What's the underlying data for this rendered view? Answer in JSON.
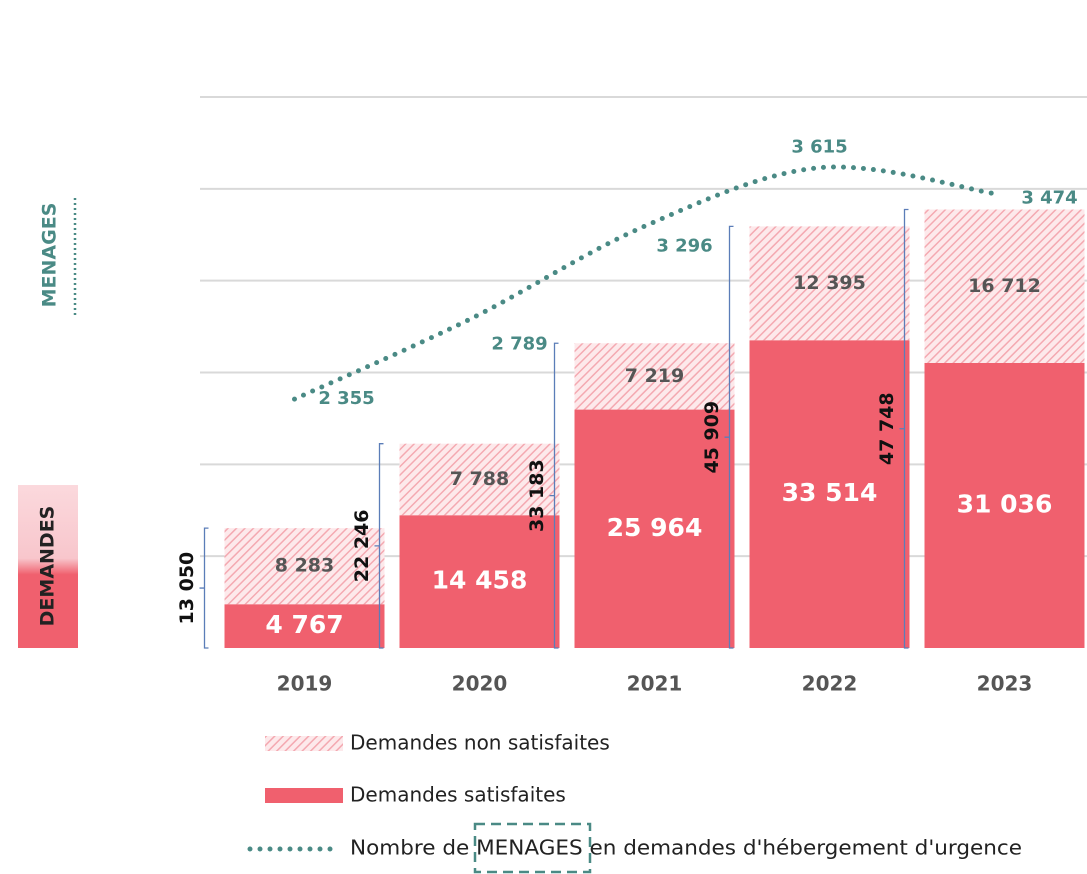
{
  "chart_data": {
    "type": "stacked_bar_line",
    "categories": [
      "2019",
      "2020",
      "2021",
      "2022",
      "2023"
    ],
    "series": [
      {
        "name": "Demandes satisfaites",
        "color": "#f0606e",
        "values": [
          4767,
          14458,
          25964,
          33514,
          31036
        ],
        "value_labels": [
          "4 767",
          "14 458",
          "25 964",
          "33 514",
          "31 036"
        ]
      },
      {
        "name": "Demandes non satisfaites",
        "color": "#f4b6bd",
        "hatched": true,
        "values": [
          8283,
          7788,
          7219,
          12395,
          16712
        ],
        "value_labels": [
          "8 283",
          "7 788",
          "7 219",
          "12 395",
          "16 712"
        ]
      },
      {
        "name": "Nombre de MENAGES en demandes d'hébergement d'urgence",
        "color": "#4a8a85",
        "axis": "y2",
        "values": [
          2355,
          2789,
          3296,
          3615,
          3474
        ],
        "value_labels": [
          "2 355",
          "2 789",
          "3 296",
          "3 615",
          "3 474"
        ]
      }
    ],
    "totals": [
      {
        "value": 13050,
        "label": "13 050"
      },
      {
        "value": 22246,
        "label": "22 246"
      },
      {
        "value": 33183,
        "label": "33 183"
      },
      {
        "value": 45909,
        "label": "45 909"
      },
      {
        "value": 47748,
        "label": "47 748"
      }
    ],
    "side_labels": [
      "MENAGES",
      "DEMANDES"
    ],
    "ylim": [
      0,
      60000
    ],
    "yticks": [
      10000,
      20000,
      30000,
      40000,
      50000,
      60000
    ],
    "y2lim": [
      1000,
      4000
    ],
    "grid": true
  }
}
